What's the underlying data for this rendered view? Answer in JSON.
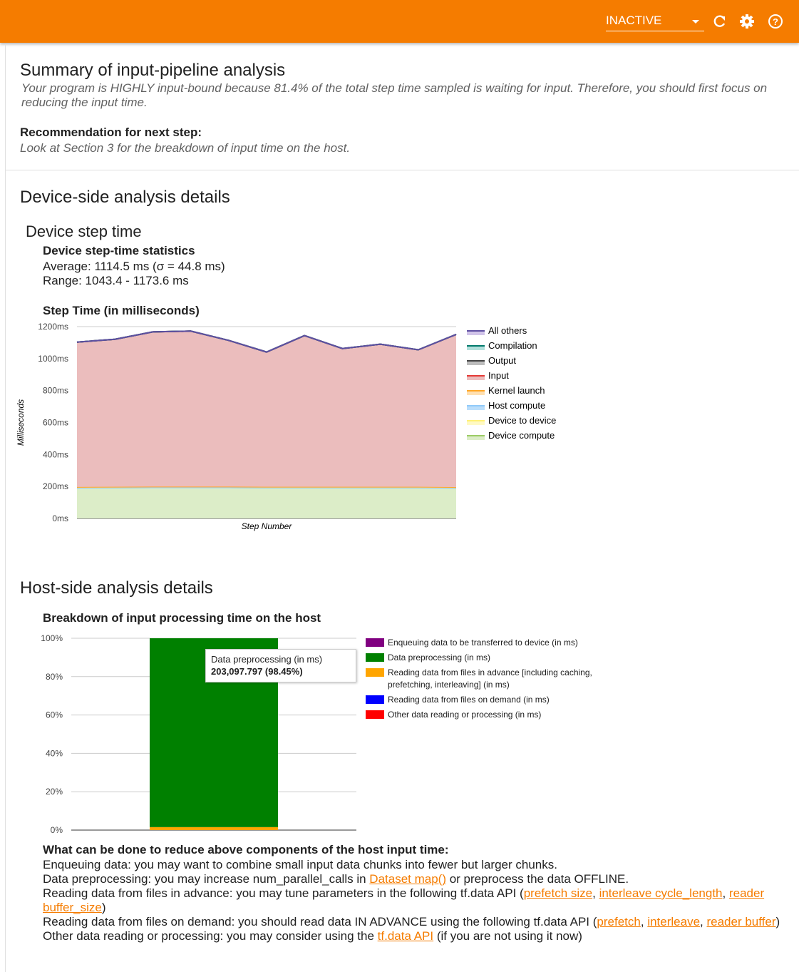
{
  "toolbar": {
    "status": "INACTIVE"
  },
  "summary": {
    "title": "Summary of input-pipeline analysis",
    "text": "Your program is HIGHLY input-bound because 81.4% of the total step time sampled is waiting for input. Therefore, you should first focus on reducing the input time.",
    "recommendation_title": "Recommendation for next step:",
    "recommendation": "Look at Section 3 for the breakdown of input time on the host."
  },
  "device": {
    "title": "Device-side analysis details",
    "subtitle": "Device step time",
    "stats_title": "Device step-time statistics",
    "average": "Average: 1114.5 ms (σ = 44.8 ms)",
    "range": "Range: 1043.4 - 1173.6 ms"
  },
  "host": {
    "title": "Host-side analysis details"
  },
  "advice": {
    "title": "What can be done to reduce above components of the host input time:",
    "lines": [
      [
        {
          "text": "Enqueuing data: you may want to combine small input data chunks into fewer but larger chunks."
        }
      ],
      [
        {
          "text": "Data preprocessing: you may increase num_parallel_calls in "
        },
        {
          "link": "Dataset map()"
        },
        {
          "text": " or preprocess the data OFFLINE."
        }
      ],
      [
        {
          "text": "Reading data from files in advance: you may tune parameters in the following tf.data API ("
        },
        {
          "link": "prefetch size"
        },
        {
          "text": ", "
        },
        {
          "link": "interleave cycle_length"
        },
        {
          "text": ", "
        },
        {
          "link": "reader buffer_size"
        },
        {
          "text": ")"
        }
      ],
      [
        {
          "text": "Reading data from files on demand: you should read data IN ADVANCE using the following tf.data API ("
        },
        {
          "link": "prefetch"
        },
        {
          "text": ", "
        },
        {
          "link": "interleave"
        },
        {
          "text": ", "
        },
        {
          "link": "reader buffer"
        },
        {
          "text": ")"
        }
      ],
      [
        {
          "text": "Other data reading or processing: you may consider using the "
        },
        {
          "link": "tf.data API"
        },
        {
          "text": " (if you are not using it now)"
        }
      ]
    ]
  },
  "chart_data": [
    {
      "type": "stacked-area",
      "title": "Step Time (in milliseconds)",
      "y_label": "Milliseconds",
      "x_label": "Step Number",
      "categories": [
        null,
        null,
        null,
        null,
        null,
        null,
        null,
        null,
        null,
        null,
        null
      ],
      "ylim": [
        0,
        1200
      ],
      "yticks": [
        {
          "value": 0,
          "label": "0ms"
        },
        {
          "value": 200,
          "label": "200ms"
        },
        {
          "value": 400,
          "label": "400ms"
        },
        {
          "value": 600,
          "label": "600ms"
        },
        {
          "value": 800,
          "label": "800ms"
        },
        {
          "value": 1000,
          "label": "1000ms"
        },
        {
          "value": 1200,
          "label": "1200ms"
        }
      ],
      "grid": true,
      "series": [
        {
          "name": "Device compute",
          "color": "#9ccc65",
          "fill": "#dcedc8",
          "values": [
            192,
            193,
            194,
            194,
            194,
            193,
            193,
            193,
            193,
            193,
            191
          ]
        },
        {
          "name": "Device to device",
          "color": "#fff176",
          "fill": "#fff9c4",
          "values": [
            0,
            0,
            0,
            0,
            0,
            0,
            0,
            0,
            0,
            0,
            0
          ]
        },
        {
          "name": "Host compute",
          "color": "#90caf9",
          "fill": "#bbdefb",
          "values": [
            0,
            0,
            0,
            0,
            0,
            0,
            0,
            0,
            0,
            0,
            0
          ]
        },
        {
          "name": "Kernel launch",
          "color": "#ffa726",
          "fill": "#ffe0b2",
          "values": [
            5,
            5,
            5,
            5,
            5,
            5,
            5,
            5,
            5,
            5,
            5
          ]
        },
        {
          "name": "Input",
          "color": "#e53935",
          "fill": "#ebbdbd",
          "values": [
            906,
            923,
            968,
            973,
            915,
            843,
            946,
            865,
            892,
            857,
            955
          ]
        },
        {
          "name": "Output",
          "color": "#424242",
          "fill": "#bdbdbd",
          "values": [
            0,
            0,
            0,
            0,
            0,
            0,
            0,
            0,
            0,
            0,
            0
          ]
        },
        {
          "name": "Compilation",
          "color": "#00796b",
          "fill": "#b2dfdb",
          "values": [
            0,
            0,
            0,
            0,
            0,
            0,
            0,
            0,
            0,
            0,
            0
          ]
        },
        {
          "name": "All others",
          "color": "#5e4fa2",
          "fill": "#d1c4e9",
          "values": [
            0,
            0,
            0,
            0,
            0,
            0,
            0,
            0,
            0,
            0,
            0
          ]
        }
      ]
    },
    {
      "type": "stacked-bar",
      "title": "Breakdown of input processing time on the host",
      "categories": [
        null
      ],
      "ylim": [
        0,
        100
      ],
      "yticks": [
        {
          "value": 0,
          "label": "0%"
        },
        {
          "value": 20,
          "label": "20%"
        },
        {
          "value": 40,
          "label": "40%"
        },
        {
          "value": 60,
          "label": "60%"
        },
        {
          "value": 80,
          "label": "80%"
        },
        {
          "value": 100,
          "label": "100%"
        }
      ],
      "grid": true,
      "series": [
        {
          "name": "Enqueuing data to be transferred to device (in ms)",
          "color": "#800080",
          "values": [
            0
          ]
        },
        {
          "name": "Data preprocessing (in ms)",
          "color": "#008000",
          "values": [
            98.45
          ]
        },
        {
          "name": "Reading data from files in advance [including caching, prefetching, interleaving] (in ms)",
          "color": "#ffa500",
          "values": [
            1.55
          ]
        },
        {
          "name": "Reading data from files on demand (in ms)",
          "color": "#0000ff",
          "values": [
            0
          ]
        },
        {
          "name": "Other data reading or processing (in ms)",
          "color": "#ff0000",
          "values": [
            0
          ]
        }
      ],
      "tooltip": {
        "title": "Data preprocessing (in ms)",
        "text": "203,097.797 (98.45%)"
      }
    }
  ]
}
